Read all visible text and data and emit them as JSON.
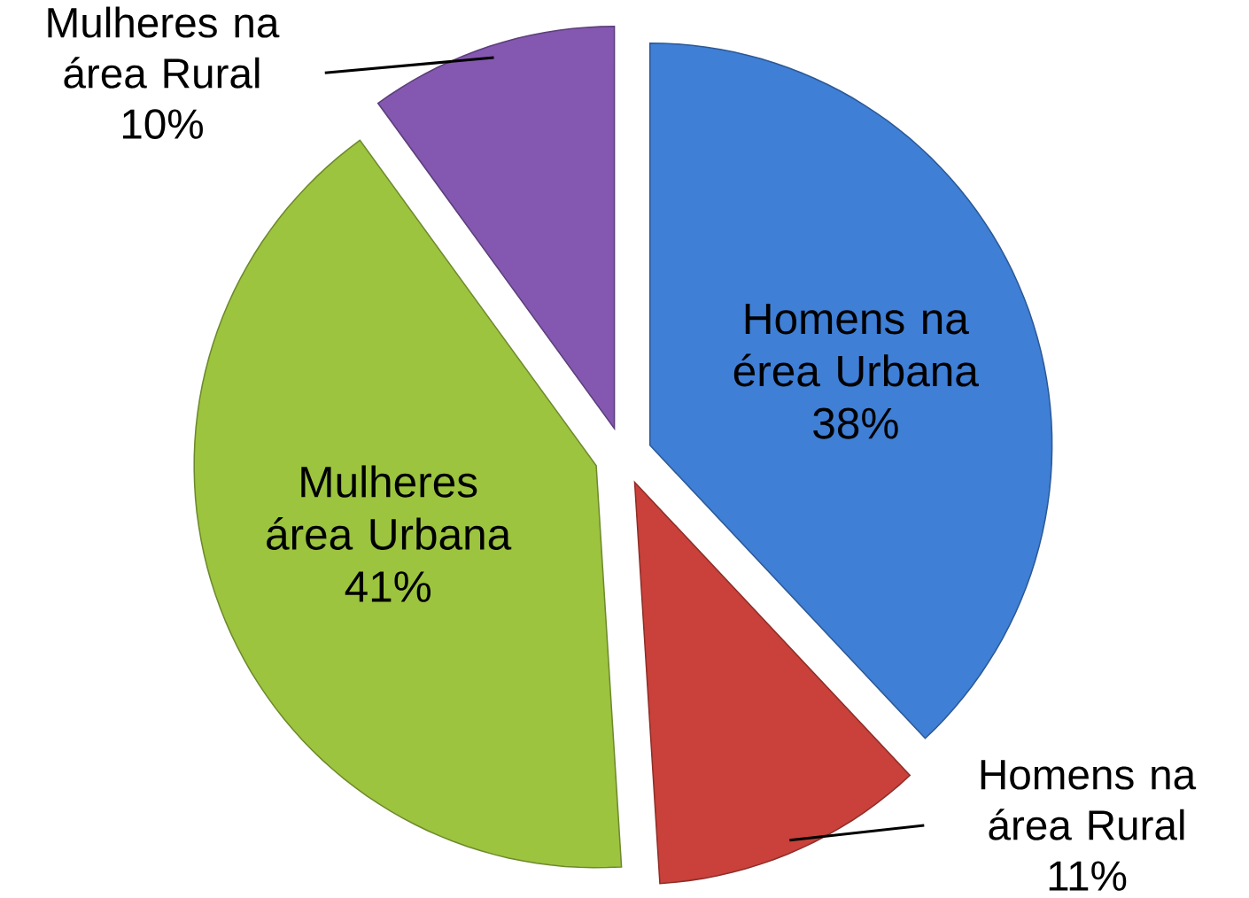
{
  "chart_data": {
    "type": "pie",
    "categories": [
      "Homens na érea Urbana",
      "Homens na área Rural",
      "Mulheres área Urbana",
      "Mulheres na área Rural"
    ],
    "values": [
      38,
      11,
      41,
      10
    ],
    "value_labels": [
      "38%",
      "11%",
      "41%",
      "10%"
    ],
    "colors": [
      "#3f7fd6",
      "#c9413a",
      "#9cc43f",
      "#8458b0"
    ]
  }
}
